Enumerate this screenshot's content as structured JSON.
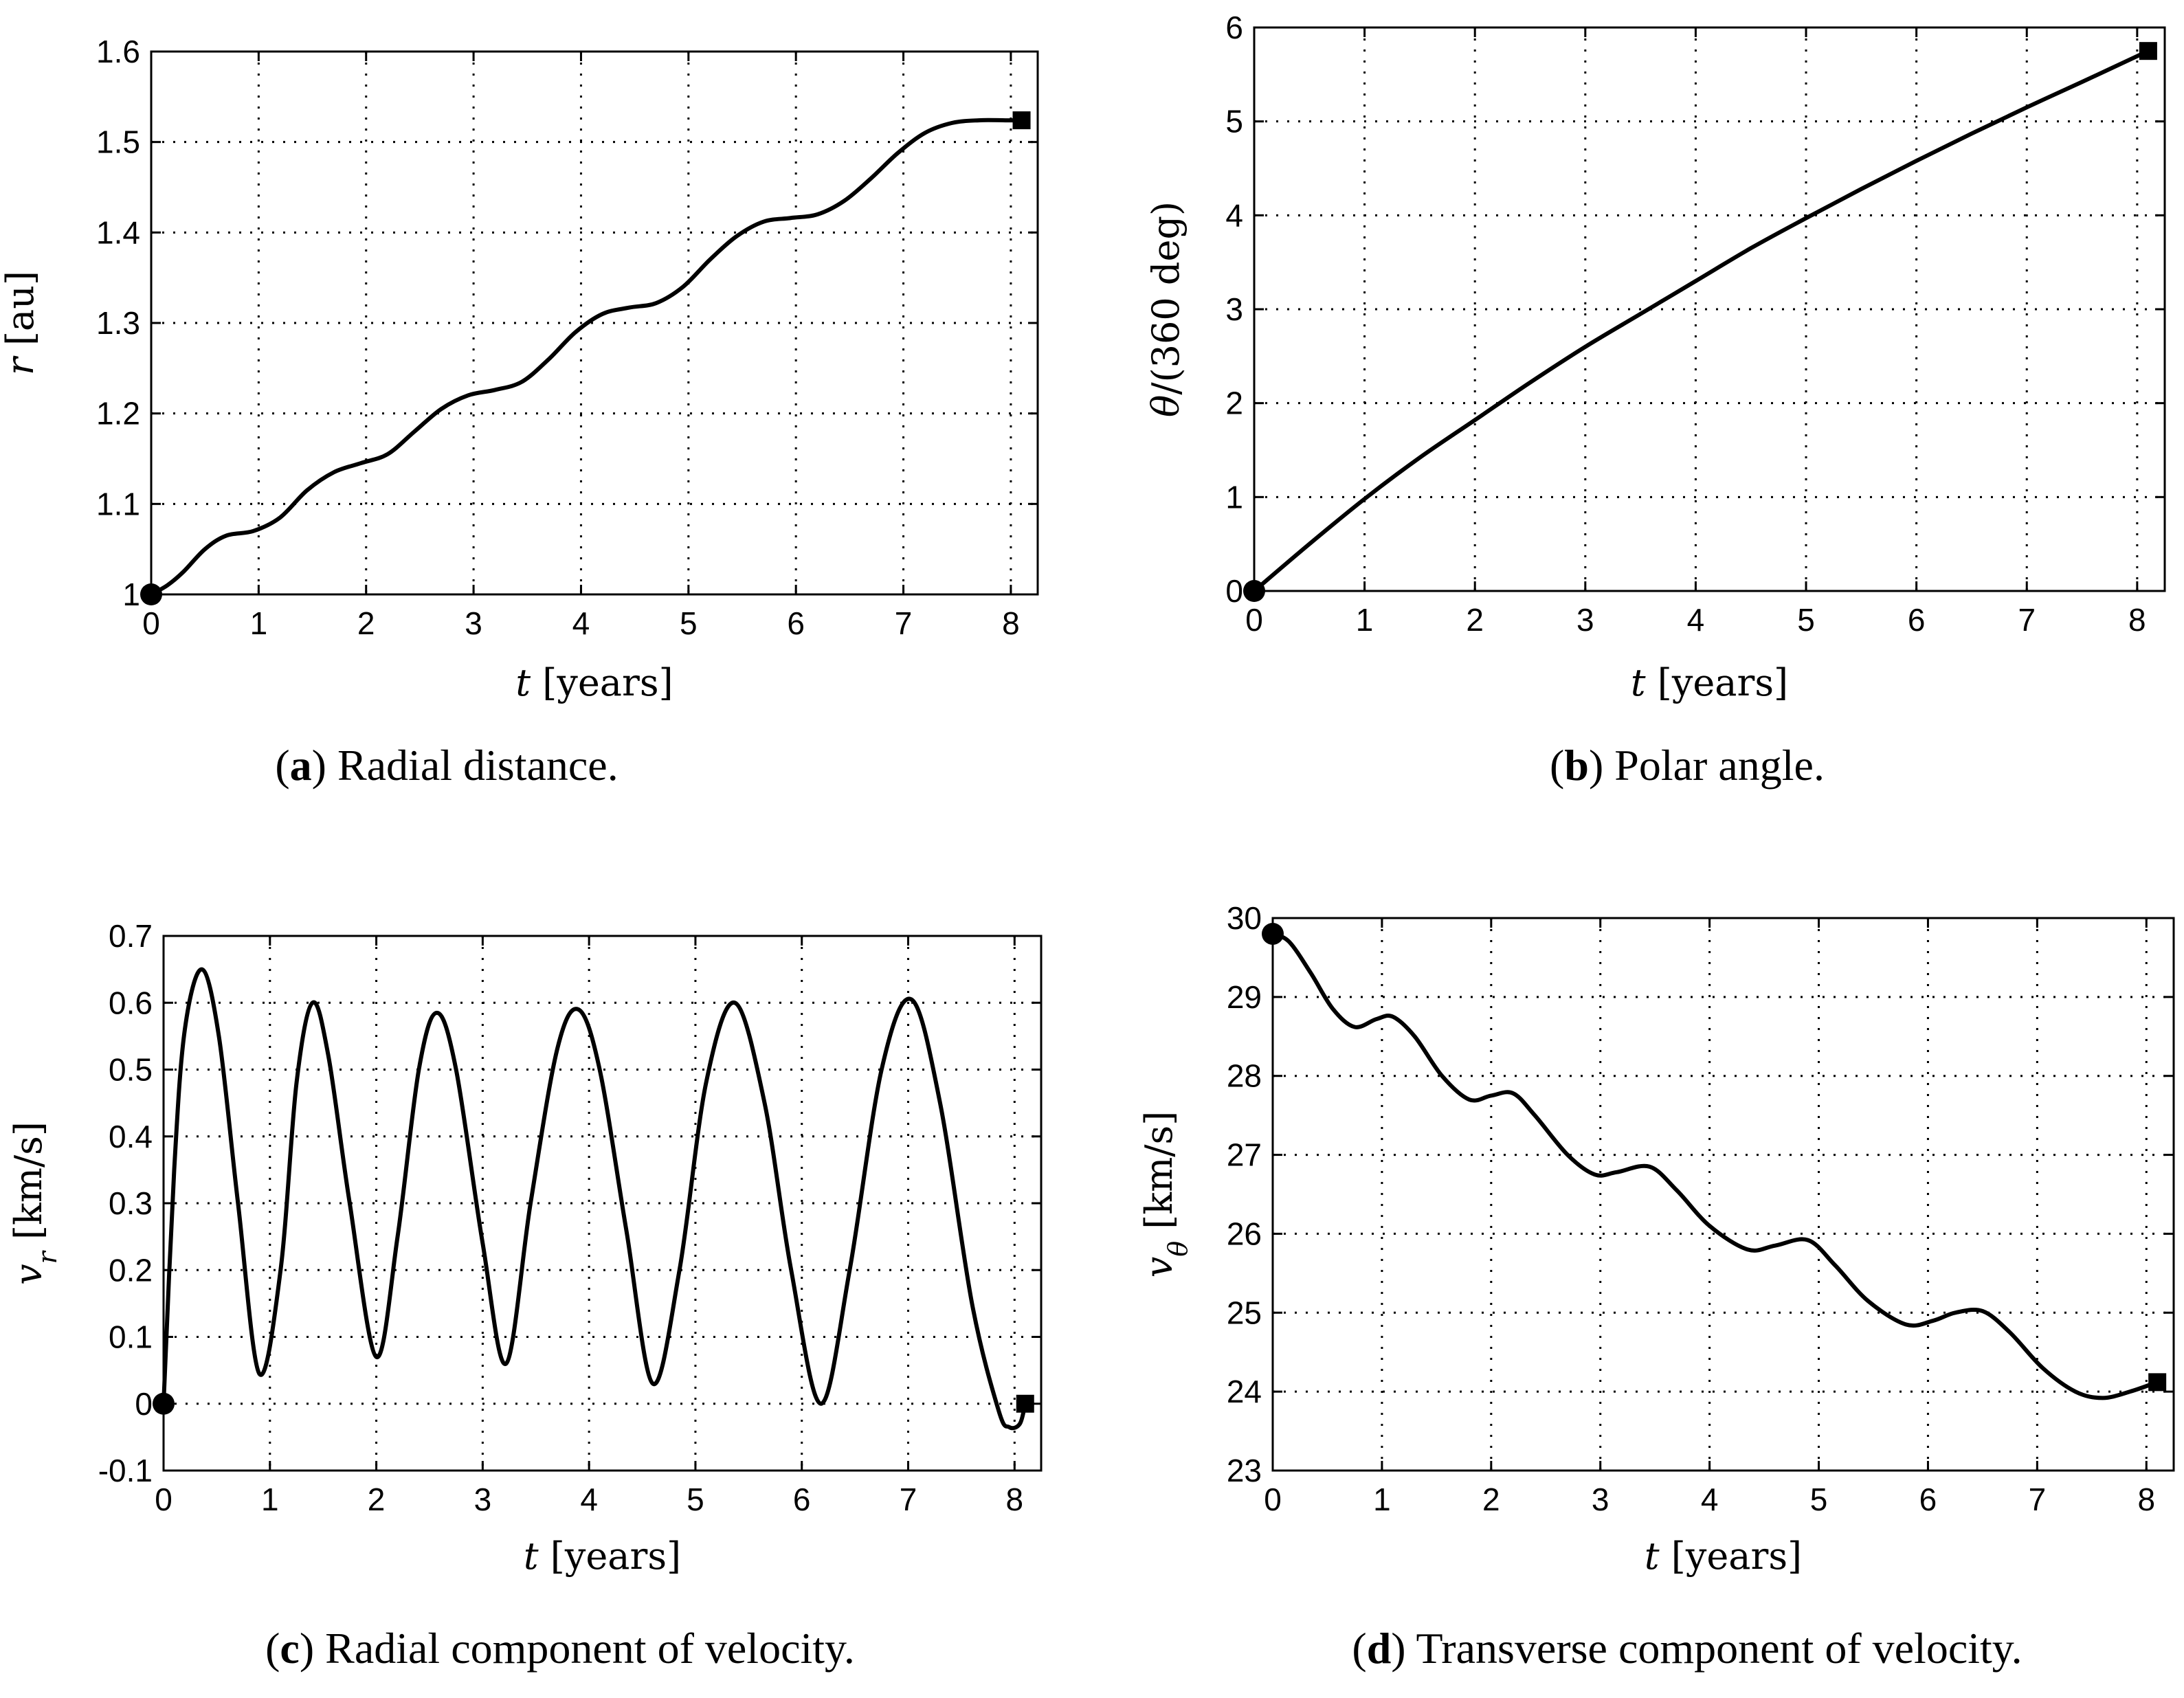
{
  "figure": {
    "panels": [
      {
        "id": "a",
        "letter": "a",
        "caption_text": "Radial distance."
      },
      {
        "id": "b",
        "letter": "b",
        "caption_text": "Polar angle."
      },
      {
        "id": "c",
        "letter": "c",
        "caption_text": "Radial component of velocity."
      },
      {
        "id": "d",
        "letter": "d",
        "caption_text": "Transverse component of velocity."
      }
    ]
  },
  "colors": {
    "line": "#000000",
    "background": "#ffffff"
  },
  "chart_data": [
    {
      "type": "line",
      "title": "Radial distance.",
      "xlabel": "t [years]",
      "ylabel": "r [au]",
      "xlim": [
        0,
        8.25
      ],
      "ylim": [
        1.0,
        1.6
      ],
      "xticks": [
        0,
        1,
        2,
        3,
        4,
        5,
        6,
        7,
        8
      ],
      "xtick_labels": [
        "0",
        "1",
        "2",
        "3",
        "4",
        "5",
        "6",
        "7",
        "8"
      ],
      "yticks": [
        1.0,
        1.1,
        1.2,
        1.3,
        1.4,
        1.5,
        1.6
      ],
      "ytick_labels": [
        "1",
        "1.1",
        "1.2",
        "1.3",
        "1.4",
        "1.5",
        "1.6"
      ],
      "grid": true,
      "series": [
        {
          "name": "r",
          "x": [
            0,
            0.15,
            0.3,
            0.5,
            0.7,
            0.95,
            1.2,
            1.45,
            1.7,
            1.95,
            2.2,
            2.45,
            2.7,
            2.95,
            3.2,
            3.45,
            3.7,
            3.95,
            4.2,
            4.45,
            4.7,
            4.95,
            5.2,
            5.45,
            5.7,
            5.95,
            6.2,
            6.45,
            6.7,
            6.95,
            7.2,
            7.45,
            7.7,
            7.95,
            8.1
          ],
          "values": [
            1.0,
            1.01,
            1.025,
            1.05,
            1.065,
            1.07,
            1.085,
            1.115,
            1.135,
            1.145,
            1.155,
            1.18,
            1.205,
            1.22,
            1.226,
            1.235,
            1.26,
            1.29,
            1.31,
            1.317,
            1.322,
            1.34,
            1.37,
            1.396,
            1.412,
            1.416,
            1.42,
            1.435,
            1.46,
            1.488,
            1.51,
            1.521,
            1.524,
            1.524,
            1.524
          ]
        }
      ],
      "start_marker": {
        "x": 0,
        "y": 1.0,
        "shape": "circle"
      },
      "end_marker": {
        "x": 8.1,
        "y": 1.524,
        "shape": "square"
      }
    },
    {
      "type": "line",
      "title": "Polar angle.",
      "xlabel": "t [years]",
      "ylabel": "θ/(360 deg)",
      "xlim": [
        0,
        8.25
      ],
      "ylim": [
        0,
        6
      ],
      "xticks": [
        0,
        1,
        2,
        3,
        4,
        5,
        6,
        7,
        8
      ],
      "xtick_labels": [
        "0",
        "1",
        "2",
        "3",
        "4",
        "5",
        "6",
        "7",
        "8"
      ],
      "yticks": [
        0,
        1,
        2,
        3,
        4,
        5,
        6
      ],
      "ytick_labels": [
        "0",
        "1",
        "2",
        "3",
        "4",
        "5",
        "6"
      ],
      "grid": true,
      "series": [
        {
          "name": "theta",
          "x": [
            0,
            0.5,
            1,
            1.5,
            2,
            2.5,
            3,
            3.5,
            4,
            4.5,
            5,
            5.5,
            6,
            6.5,
            7,
            7.5,
            8.1
          ],
          "values": [
            0,
            0.5,
            0.98,
            1.42,
            1.82,
            2.22,
            2.6,
            2.95,
            3.3,
            3.65,
            3.97,
            4.28,
            4.58,
            4.87,
            5.15,
            5.42,
            5.75
          ]
        }
      ],
      "start_marker": {
        "x": 0,
        "y": 0,
        "shape": "circle"
      },
      "end_marker": {
        "x": 8.1,
        "y": 5.75,
        "shape": "square"
      }
    },
    {
      "type": "line",
      "title": "Radial component of velocity.",
      "xlabel": "t [years]",
      "ylabel": "v_r [km/s]",
      "xlim": [
        0,
        8.25
      ],
      "ylim": [
        -0.1,
        0.7
      ],
      "xticks": [
        0,
        1,
        2,
        3,
        4,
        5,
        6,
        7,
        8
      ],
      "xtick_labels": [
        "0",
        "1",
        "2",
        "3",
        "4",
        "5",
        "6",
        "7",
        "8"
      ],
      "yticks": [
        -0.1,
        0,
        0.1,
        0.2,
        0.3,
        0.4,
        0.5,
        0.6,
        0.7
      ],
      "ytick_labels": [
        "-0.1",
        "0",
        "0.1",
        "0.2",
        "0.3",
        "0.4",
        "0.5",
        "0.6",
        "0.7"
      ],
      "grid": true,
      "series": [
        {
          "name": "v_r",
          "x": [
            0,
            0.1,
            0.2,
            0.36,
            0.52,
            0.7,
            0.9,
            1.1,
            1.25,
            1.4,
            1.55,
            1.75,
            2.0,
            2.2,
            2.4,
            2.57,
            2.75,
            3.0,
            3.22,
            3.45,
            3.7,
            3.9,
            4.1,
            4.35,
            4.6,
            4.85,
            5.1,
            5.37,
            5.65,
            5.9,
            6.18,
            6.45,
            6.75,
            7.03,
            7.3,
            7.6,
            7.85,
            7.95,
            8.05,
            8.1
          ],
          "values": [
            0,
            0.35,
            0.56,
            0.65,
            0.55,
            0.3,
            0.045,
            0.2,
            0.48,
            0.6,
            0.52,
            0.3,
            0.07,
            0.25,
            0.5,
            0.585,
            0.5,
            0.24,
            0.06,
            0.3,
            0.53,
            0.59,
            0.5,
            0.26,
            0.03,
            0.2,
            0.48,
            0.6,
            0.45,
            0.2,
            0.0,
            0.2,
            0.5,
            0.605,
            0.45,
            0.15,
            -0.01,
            -0.035,
            -0.03,
            0.0
          ]
        }
      ],
      "start_marker": {
        "x": 0,
        "y": 0,
        "shape": "circle"
      },
      "end_marker": {
        "x": 8.1,
        "y": 0.0,
        "shape": "square"
      }
    },
    {
      "type": "line",
      "title": "Transverse component of velocity.",
      "xlabel": "t [years]",
      "ylabel": "v_θ [km/s]",
      "xlim": [
        0,
        8.25
      ],
      "ylim": [
        23,
        30
      ],
      "xticks": [
        0,
        1,
        2,
        3,
        4,
        5,
        6,
        7,
        8
      ],
      "xtick_labels": [
        "0",
        "1",
        "2",
        "3",
        "4",
        "5",
        "6",
        "7",
        "8"
      ],
      "yticks": [
        23,
        24,
        25,
        26,
        27,
        28,
        29,
        30
      ],
      "ytick_labels": [
        "23",
        "24",
        "25",
        "26",
        "27",
        "28",
        "29",
        "30"
      ],
      "grid": true,
      "series": [
        {
          "name": "v_theta",
          "x": [
            0,
            0.15,
            0.35,
            0.55,
            0.75,
            0.95,
            1.1,
            1.3,
            1.55,
            1.8,
            2.0,
            2.2,
            2.4,
            2.7,
            2.95,
            3.15,
            3.45,
            3.7,
            4.0,
            4.35,
            4.6,
            4.9,
            5.15,
            5.45,
            5.8,
            6.05,
            6.25,
            6.5,
            6.75,
            7.05,
            7.35,
            7.6,
            7.85,
            8.1
          ],
          "values": [
            29.8,
            29.7,
            29.3,
            28.85,
            28.62,
            28.72,
            28.75,
            28.5,
            28.0,
            27.7,
            27.75,
            27.78,
            27.5,
            27.0,
            26.75,
            26.78,
            26.85,
            26.55,
            26.1,
            25.8,
            25.85,
            25.92,
            25.6,
            25.15,
            24.85,
            24.9,
            25.0,
            25.02,
            24.75,
            24.3,
            24.0,
            23.92,
            24.0,
            24.12
          ]
        }
      ],
      "start_marker": {
        "x": 0,
        "y": 29.8,
        "shape": "circle"
      },
      "end_marker": {
        "x": 8.1,
        "y": 24.12,
        "shape": "square"
      }
    }
  ]
}
